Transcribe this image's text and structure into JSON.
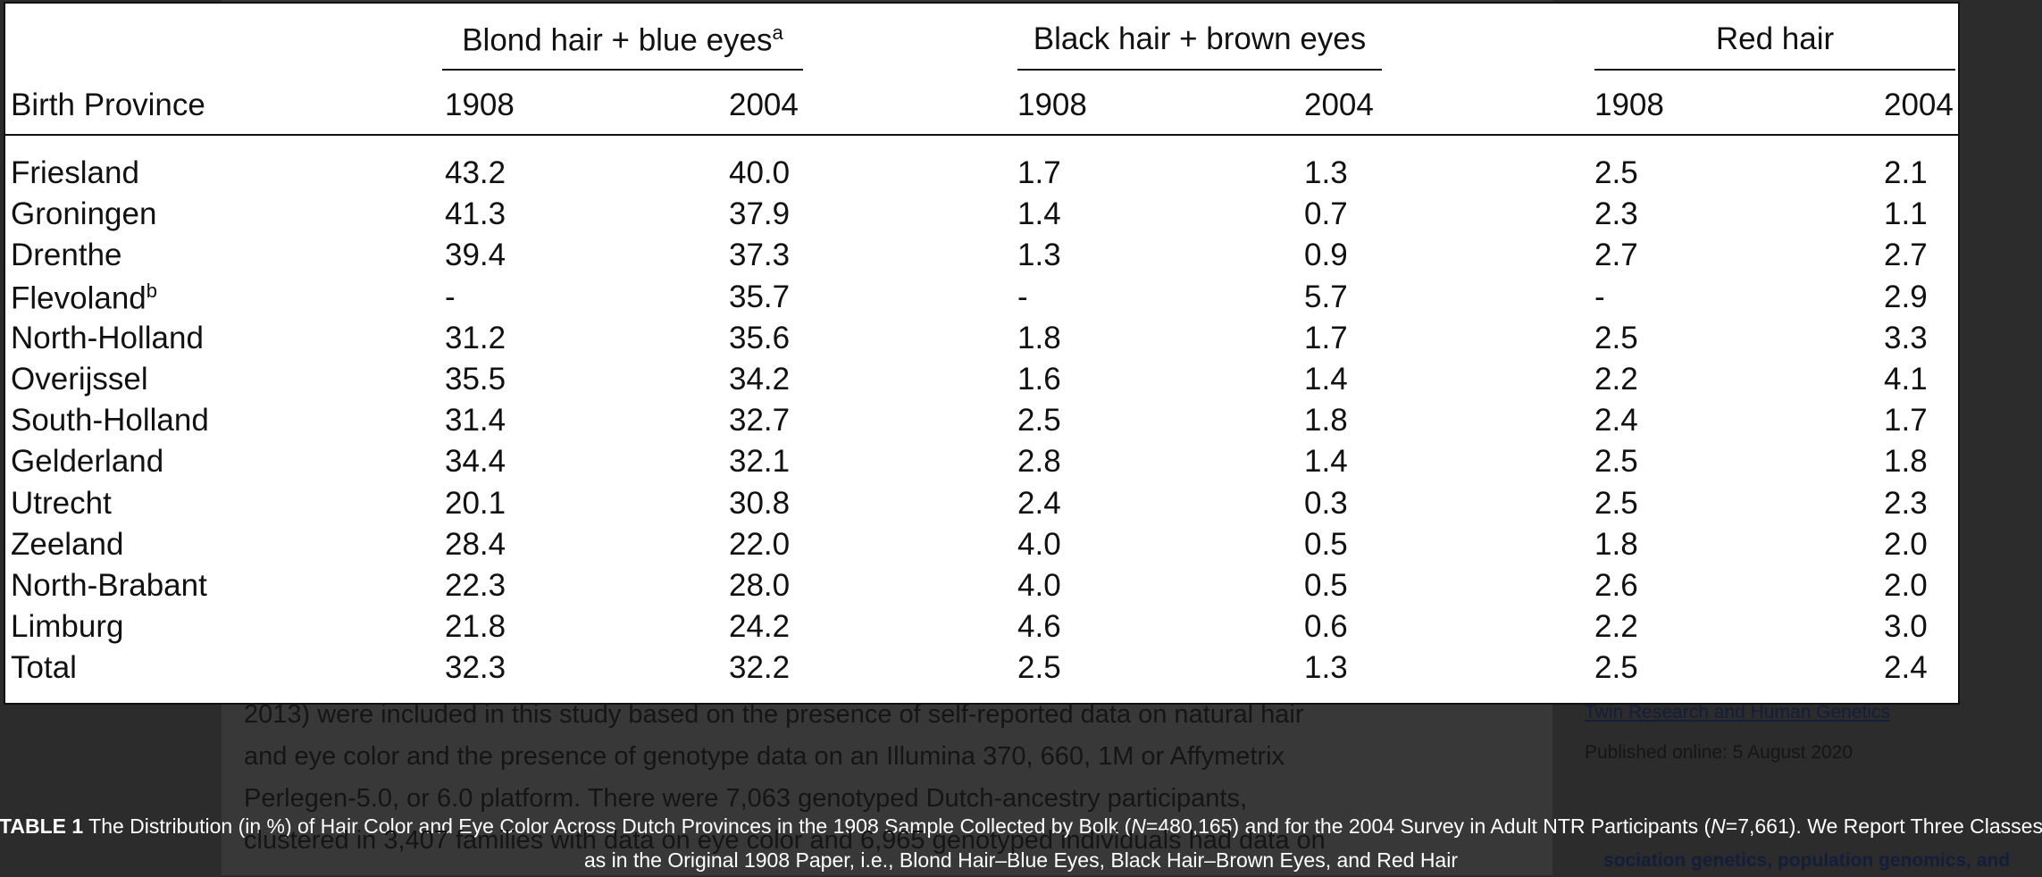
{
  "table": {
    "groups": [
      {
        "label": "Blond hair + blue eyes",
        "note": "a"
      },
      {
        "label": "Black hair + brown eyes"
      },
      {
        "label": "Red hair"
      }
    ],
    "row_header": "Birth Province",
    "years": [
      "1908",
      "2004",
      "1908",
      "2004",
      "1908",
      "2004"
    ],
    "rows": [
      {
        "label": "Friesland",
        "cells": [
          "43.2",
          "40.0",
          "1.7",
          "1.3",
          "2.5",
          "2.1"
        ]
      },
      {
        "label": "Groningen",
        "cells": [
          "41.3",
          "37.9",
          "1.4",
          "0.7",
          "2.3",
          "1.1"
        ]
      },
      {
        "label": "Drenthe",
        "cells": [
          "39.4",
          "37.3",
          "1.3",
          "0.9",
          "2.7",
          "2.7"
        ]
      },
      {
        "label": "Flevoland",
        "note": "b",
        "cells": [
          "-",
          "35.7",
          "-",
          "5.7",
          "-",
          "2.9"
        ]
      },
      {
        "label": "North-Holland",
        "cells": [
          "31.2",
          "35.6",
          "1.8",
          "1.7",
          "2.5",
          "3.3"
        ]
      },
      {
        "label": "Overijssel",
        "cells": [
          "35.5",
          "34.2",
          "1.6",
          "1.4",
          "2.2",
          "4.1"
        ]
      },
      {
        "label": "South-Holland",
        "cells": [
          "31.4",
          "32.7",
          "2.5",
          "1.8",
          "2.4",
          "1.7"
        ]
      },
      {
        "label": "Gelderland",
        "cells": [
          "34.4",
          "32.1",
          "2.8",
          "1.4",
          "2.5",
          "1.8"
        ]
      },
      {
        "label": "Utrecht",
        "cells": [
          "20.1",
          "30.8",
          "2.4",
          "0.3",
          "2.5",
          "2.3"
        ]
      },
      {
        "label": "Zeeland",
        "cells": [
          "28.4",
          "22.0",
          "4.0",
          "0.5",
          "1.8",
          "2.0"
        ]
      },
      {
        "label": "North-Brabant",
        "cells": [
          "22.3",
          "28.0",
          "4.0",
          "0.5",
          "2.6",
          "2.0"
        ]
      },
      {
        "label": "Limburg",
        "cells": [
          "21.8",
          "24.2",
          "4.6",
          "0.6",
          "2.2",
          "3.0"
        ]
      },
      {
        "label": "Total",
        "cells": [
          "32.3",
          "32.2",
          "2.5",
          "1.3",
          "2.5",
          "2.4"
        ]
      }
    ]
  },
  "caption": {
    "label": "TABLE 1",
    "parts": [
      {
        "text": " The Distribution (in %) of Hair Color and Eye Color Across Dutch Provinces in the 1908 Sample Collected by Bolk ("
      },
      {
        "text": "N",
        "em": true
      },
      {
        "text": "=480,165) and for the 2004 Survey in Adult NTR Participants ("
      },
      {
        "text": "N",
        "em": true
      },
      {
        "text": "=7,661). We Report Three Classes as in the Original 1908 Paper, i.e., Blond Hair–Blue Eyes, Black Hair–Brown Eyes, and Red Hair"
      }
    ]
  },
  "article": {
    "lines": [
      "2013) were included in this study based on the presence of self-reported data on natural hair",
      "and eye color and the presence of genotype data on an Illumina 370, 660, 1M or Affymetrix",
      "Perlegen-5.0, or 6.0 platform. There were 7,063 genotyped Dutch-ancestry participants,",
      "clustered in 3,407 families with data on eye color and 6,965 genotyped individuals had data on"
    ]
  },
  "sidebar": {
    "journal": "Twin Research and Human Genetics",
    "published": "Published online: 5 August 2020",
    "keywords": "sociation genetics, population genomics, and"
  }
}
